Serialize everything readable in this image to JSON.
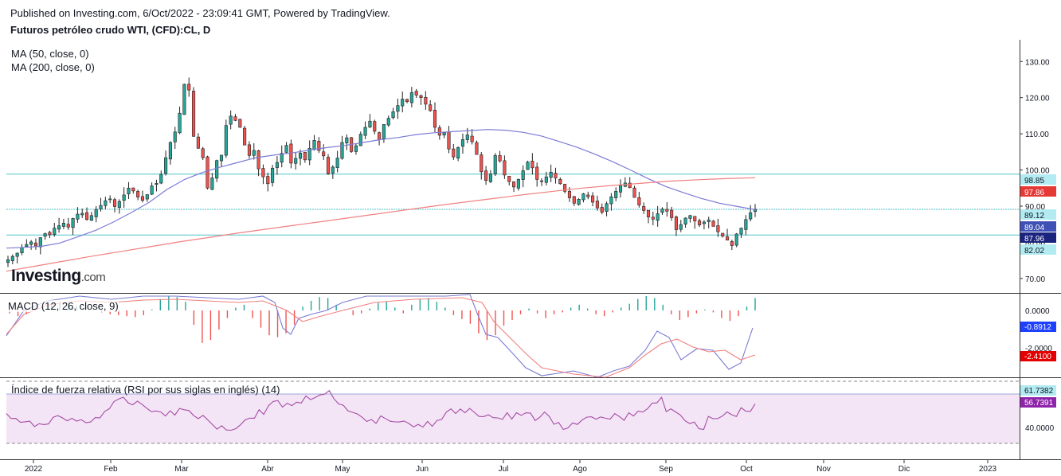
{
  "header": {
    "published": "Published on Investing.com, 6/Oct/2022 - 23:09:41 GMT, Powered by TradingView.",
    "symbol": "Futuros petróleo crudo WTI, (CFD):CL, D"
  },
  "watermark": {
    "brand": "Investing",
    "suffix": ".com"
  },
  "colors": {
    "up": "#26a69a",
    "down": "#ef5350",
    "ma50": "#7b7bd6",
    "ma200": "#f08080",
    "hline": "#4fc3c9",
    "macd_line": "#7b7bd6",
    "signal_line": "#f08080",
    "rsi_line": "#a64ca6",
    "rsi_band": "#f3e5f5"
  },
  "chart_data": [
    {
      "type": "candlestick",
      "title": "Futuros petróleo crudo WTI, (CFD):CL, D",
      "indicators": [
        "MA (50, close, 0)",
        "MA (200, close, 0)"
      ],
      "y_ticks": [
        "130.00",
        "120.00",
        "110.00",
        "100.00",
        "90.00",
        "80.00",
        "70.00"
      ],
      "ylim": [
        66,
        136
      ],
      "x_ticks": [
        "2022",
        "Feb",
        "Mar",
        "Abr",
        "May",
        "Jun",
        "Jul",
        "Ago",
        "Sep",
        "Oct",
        "Nov",
        "Dic",
        "2023"
      ],
      "price_labels": [
        {
          "value": "98.85",
          "style": "hline"
        },
        {
          "value": "97.86",
          "style": "ma200"
        },
        {
          "value": "89.12",
          "style": "hline"
        },
        {
          "value": "89.04",
          "style": "blue"
        },
        {
          "value": "87.96",
          "style": "navy"
        },
        {
          "value": "82.02",
          "style": "hline"
        }
      ],
      "horizontal_lines": [
        98.85,
        89.12,
        82.02
      ],
      "close_series": [
        75.2,
        76.1,
        77.0,
        78.6,
        79.4,
        80.1,
        79.0,
        81.3,
        82.4,
        82.1,
        83.9,
        84.6,
        85.3,
        84.2,
        86.6,
        87.8,
        88.0,
        86.3,
        87.4,
        89.1,
        90.2,
        91.5,
        92.0,
        89.9,
        91.3,
        93.1,
        95.0,
        94.2,
        92.5,
        91.6,
        93.2,
        95.6,
        96.3,
        98.8,
        103.4,
        107.6,
        110.5,
        115.7,
        123.7,
        122.1,
        109.3,
        106.0,
        103.4,
        95.0,
        97.8,
        102.6,
        104.1,
        112.3,
        114.9,
        113.7,
        111.8,
        106.9,
        104.0,
        105.4,
        100.3,
        98.1,
        96.2,
        100.5,
        102.1,
        104.6,
        106.8,
        101.9,
        103.2,
        104.7,
        102.8,
        106.0,
        108.2,
        105.4,
        103.9,
        99.0,
        100.8,
        103.3,
        107.6,
        108.9,
        105.1,
        106.7,
        109.9,
        111.8,
        113.5,
        110.7,
        108.4,
        112.6,
        114.3,
        116.1,
        117.8,
        119.6,
        118.9,
        121.4,
        120.7,
        120.0,
        118.2,
        116.4,
        111.8,
        109.6,
        110.3,
        105.8,
        103.6,
        106.2,
        108.4,
        109.7,
        107.8,
        104.3,
        99.5,
        97.1,
        98.9,
        104.0,
        102.5,
        98.6,
        96.8,
        95.3,
        97.4,
        99.8,
        102.2,
        100.6,
        97.4,
        96.9,
        98.1,
        99.4,
        97.8,
        96.2,
        94.1,
        92.3,
        90.8,
        91.9,
        93.4,
        92.6,
        91.1,
        89.5,
        88.3,
        90.7,
        92.6,
        94.1,
        95.7,
        96.4,
        95.1,
        92.4,
        90.3,
        88.8,
        87.0,
        86.4,
        87.9,
        89.2,
        88.6,
        86.8,
        83.5,
        84.9,
        86.7,
        87.4,
        85.9,
        84.8,
        85.6,
        86.2,
        84.4,
        82.9,
        81.7,
        80.6,
        79.1,
        82.3,
        83.9,
        86.3,
        88.2,
        89.12
      ],
      "ma50_series": [
        78.4,
        78.6,
        78.9,
        79.8,
        81.5,
        83.3,
        85.6,
        88.2,
        91.0,
        94.6,
        97.4,
        99.3,
        100.8,
        102.1,
        103.4,
        104.1,
        104.7,
        105.5,
        106.2,
        106.8,
        107.6,
        108.4,
        109.0,
        109.8,
        110.3,
        110.6,
        110.9,
        111.2,
        111.0,
        110.4,
        109.4,
        107.9,
        106.3,
        104.4,
        102.3,
        100.0,
        97.6,
        95.4,
        93.7,
        92.1,
        90.8,
        89.9,
        89.04
      ],
      "ma200_series": [
        72.0,
        73.4,
        74.8,
        76.2,
        77.5,
        78.8,
        80.1,
        81.3,
        82.5,
        83.6,
        84.7,
        85.8,
        86.9,
        88.0,
        89.1,
        90.2,
        91.2,
        92.2,
        93.2,
        94.1,
        95.0,
        95.7,
        96.3,
        96.9,
        97.3,
        97.6,
        97.86
      ]
    },
    {
      "type": "macd",
      "title": "MACD (12, 26, close, 9)",
      "y_ticks": [
        "0.0000",
        "-2.0000"
      ],
      "values": {
        "macd": "-0.8912",
        "signal": "-2.4100"
      }
    },
    {
      "type": "rsi",
      "title": "Índice de fuerza relativa (RSI por sus siglas en inglés) (14)",
      "y_ticks": [
        "40.0000"
      ],
      "values": {
        "rsi": "56.7391",
        "band_top": "61.7382"
      }
    }
  ]
}
